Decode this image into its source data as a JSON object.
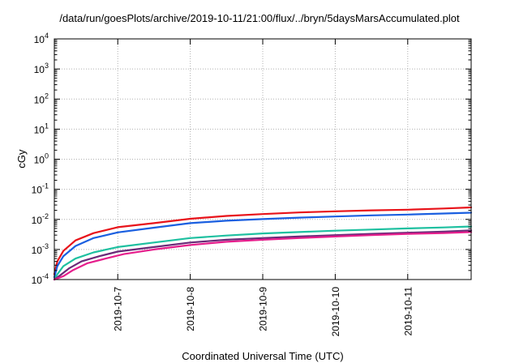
{
  "chart_data": {
    "type": "line",
    "title": "/data/run/goesPlots/archive/2019-10-11/21:00/flux/../bryn/5daysMarsAccumulated.plot",
    "xlabel": "Coordinated Universal Time (UTC)",
    "ylabel": "cGy",
    "x_scale": "time",
    "y_scale": "log",
    "xlim": [
      "2019-10-06T03:00",
      "2019-10-11T21:00"
    ],
    "ylim": [
      0.0001,
      10000
    ],
    "x_ticks": [
      "2019-10-7",
      "2019-10-8",
      "2019-10-9",
      "2019-10-10",
      "2019-10-11"
    ],
    "y_ticks": [
      {
        "base": "10",
        "exp": "-4",
        "value": 0.0001
      },
      {
        "base": "10",
        "exp": "-3",
        "value": 0.001
      },
      {
        "base": "10",
        "exp": "-2",
        "value": 0.01
      },
      {
        "base": "10",
        "exp": "-1",
        "value": 0.1
      },
      {
        "base": "10",
        "exp": "0",
        "value": 1
      },
      {
        "base": "10",
        "exp": "1",
        "value": 10
      },
      {
        "base": "10",
        "exp": "2",
        "value": 100
      },
      {
        "base": "10",
        "exp": "3",
        "value": 1000
      },
      {
        "base": "10",
        "exp": "4",
        "value": 10000
      }
    ],
    "grid": true,
    "legend": "none",
    "series": [
      {
        "color": "#e8131a",
        "x": [
          "2019-10-06T03:00",
          "2019-10-06T04:00",
          "2019-10-06T06:00",
          "2019-10-06T10:00",
          "2019-10-06T16:00",
          "2019-10-07T00:00",
          "2019-10-07T12:00",
          "2019-10-08T00:00",
          "2019-10-08T12:00",
          "2019-10-09T00:00",
          "2019-10-09T12:00",
          "2019-10-10T00:00",
          "2019-10-10T12:00",
          "2019-10-11T00:00",
          "2019-10-11T12:00",
          "2019-10-11T21:00"
        ],
        "values": [
          0.00015,
          0.0004,
          0.0009,
          0.002,
          0.0035,
          0.0055,
          0.0075,
          0.0105,
          0.013,
          0.015,
          0.017,
          0.0185,
          0.02,
          0.021,
          0.023,
          0.025
        ]
      },
      {
        "color": "#1a5fe0",
        "x": [
          "2019-10-06T03:00",
          "2019-10-06T04:00",
          "2019-10-06T06:00",
          "2019-10-06T10:00",
          "2019-10-06T16:00",
          "2019-10-07T00:00",
          "2019-10-07T12:00",
          "2019-10-08T00:00",
          "2019-10-08T12:00",
          "2019-10-09T00:00",
          "2019-10-09T12:00",
          "2019-10-10T00:00",
          "2019-10-10T12:00",
          "2019-10-11T00:00",
          "2019-10-11T12:00",
          "2019-10-11T21:00"
        ],
        "values": [
          0.00012,
          0.00028,
          0.0006,
          0.0013,
          0.0024,
          0.0037,
          0.0053,
          0.0075,
          0.009,
          0.0102,
          0.0114,
          0.0125,
          0.0136,
          0.0145,
          0.0157,
          0.0167
        ]
      },
      {
        "color": "#1ec0a0",
        "x": [
          "2019-10-06T03:00",
          "2019-10-06T04:00",
          "2019-10-06T06:00",
          "2019-10-06T10:00",
          "2019-10-06T16:00",
          "2019-10-07T00:00",
          "2019-10-07T12:00",
          "2019-10-08T00:00",
          "2019-10-08T12:00",
          "2019-10-09T00:00",
          "2019-10-09T12:00",
          "2019-10-10T00:00",
          "2019-10-10T12:00",
          "2019-10-11T00:00",
          "2019-10-11T12:00",
          "2019-10-11T21:00"
        ],
        "values": [
          0.0001,
          0.00015,
          0.00028,
          0.0005,
          0.0008,
          0.0012,
          0.0017,
          0.0024,
          0.0029,
          0.0034,
          0.0038,
          0.0042,
          0.0046,
          0.005,
          0.0054,
          0.0058
        ]
      },
      {
        "color": "#6a2a78",
        "x": [
          "2019-10-06T03:00",
          "2019-10-06T05:00",
          "2019-10-06T08:00",
          "2019-10-06T12:00",
          "2019-10-06T18:00",
          "2019-10-07T00:00",
          "2019-10-07T12:00",
          "2019-10-08T00:00",
          "2019-10-08T12:00",
          "2019-10-09T00:00",
          "2019-10-09T12:00",
          "2019-10-10T00:00",
          "2019-10-10T12:00",
          "2019-10-11T00:00",
          "2019-10-11T12:00",
          "2019-10-11T21:00"
        ],
        "values": [
          0.0001,
          0.00014,
          0.00024,
          0.0004,
          0.0006,
          0.00085,
          0.0012,
          0.0017,
          0.0021,
          0.0024,
          0.0027,
          0.003,
          0.0033,
          0.0036,
          0.0039,
          0.0043
        ]
      },
      {
        "color": "#e61e8c",
        "x": [
          "2019-10-06T03:00",
          "2019-10-06T06:00",
          "2019-10-06T09:00",
          "2019-10-06T14:00",
          "2019-10-06T20:00",
          "2019-10-07T02:00",
          "2019-10-07T12:00",
          "2019-10-08T00:00",
          "2019-10-08T12:00",
          "2019-10-09T00:00",
          "2019-10-09T12:00",
          "2019-10-10T00:00",
          "2019-10-10T12:00",
          "2019-10-11T00:00",
          "2019-10-11T12:00",
          "2019-10-11T21:00"
        ],
        "values": [
          0.0001,
          0.00013,
          0.0002,
          0.00035,
          0.0005,
          0.0007,
          0.001,
          0.0014,
          0.0018,
          0.0021,
          0.0024,
          0.0027,
          0.003,
          0.0033,
          0.0035,
          0.0038
        ]
      }
    ]
  }
}
